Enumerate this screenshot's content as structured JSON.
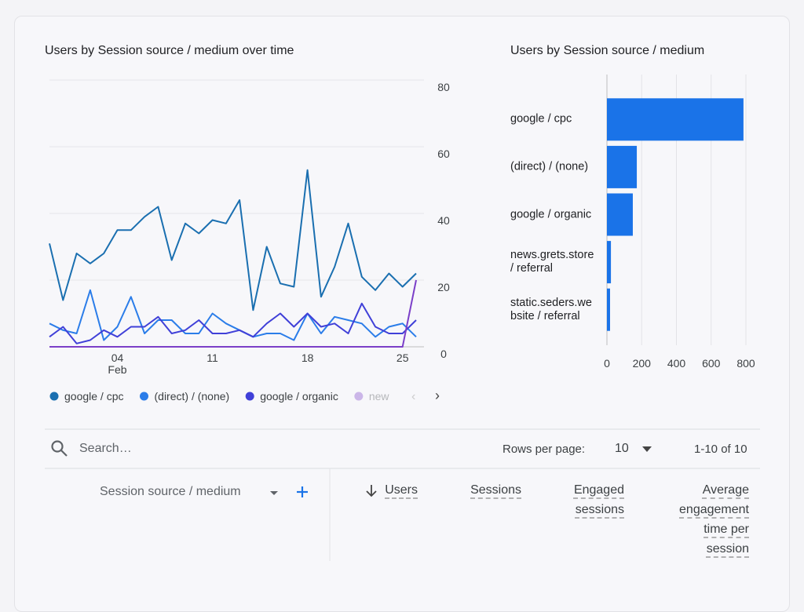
{
  "chart_data": [
    {
      "type": "line",
      "title": "Users by Session source / medium over time",
      "categories": [
        null,
        null,
        null,
        null,
        null,
        "04",
        null,
        null,
        null,
        null,
        null,
        null,
        "11",
        null,
        null,
        null,
        null,
        null,
        null,
        "18",
        null,
        null,
        null,
        null,
        null,
        null,
        "25",
        null
      ],
      "x_month_label": "Feb",
      "ylim": [
        0,
        80
      ],
      "yticks": [
        0,
        20,
        40,
        60,
        80
      ],
      "grid": true,
      "series": [
        {
          "name": "google / cpc",
          "color": "#1a6fb0",
          "values": [
            31,
            14,
            28,
            25,
            28,
            35,
            35,
            39,
            42,
            26,
            37,
            34,
            38,
            37,
            44,
            11,
            30,
            19,
            18,
            53,
            15,
            24,
            37,
            21,
            17,
            22,
            18,
            22
          ]
        },
        {
          "name": "(direct) / (none)",
          "color": "#2b7de9",
          "values": [
            7,
            5,
            4,
            17,
            2,
            6,
            15,
            4,
            8,
            8,
            4,
            4,
            10,
            7,
            5,
            3,
            4,
            4,
            2,
            10,
            4,
            9,
            8,
            7,
            3,
            6,
            7,
            3
          ]
        },
        {
          "name": "google / organic",
          "color": "#4040d8",
          "values": [
            3,
            6,
            1,
            2,
            5,
            3,
            6,
            6,
            9,
            4,
            5,
            8,
            4,
            4,
            5,
            3,
            7,
            10,
            6,
            10,
            6,
            7,
            4,
            13,
            6,
            4,
            4,
            8
          ]
        },
        {
          "name": "new",
          "color": "#7b3fc8",
          "values": [
            0,
            0,
            0,
            0,
            0,
            0,
            0,
            0,
            0,
            0,
            0,
            0,
            0,
            0,
            0,
            0,
            0,
            0,
            0,
            0,
            0,
            0,
            0,
            0,
            0,
            0,
            0,
            20
          ]
        }
      ]
    },
    {
      "type": "bar",
      "orientation": "horizontal",
      "title": "Users by Session source / medium",
      "categories": [
        "google / cpc",
        "(direct) / (none)",
        "google / organic",
        "news.grets.store / referral",
        "static.seders.website / referral"
      ],
      "values": [
        786,
        172,
        149,
        23,
        18
      ],
      "color": "#1a73e8",
      "xlim": [
        0,
        800
      ],
      "xticks": [
        0,
        200,
        400,
        600,
        800
      ],
      "grid": true
    }
  ],
  "toolbar": {
    "search_placeholder": "Search…",
    "rows_per_page_label": "Rows per page:",
    "rows_per_page": "10",
    "range": "1-10 of 10"
  },
  "table": {
    "columns": [
      "Session source / medium",
      "Users",
      "Sessions",
      "Engaged sessions",
      "Average engagement time per session"
    ]
  }
}
